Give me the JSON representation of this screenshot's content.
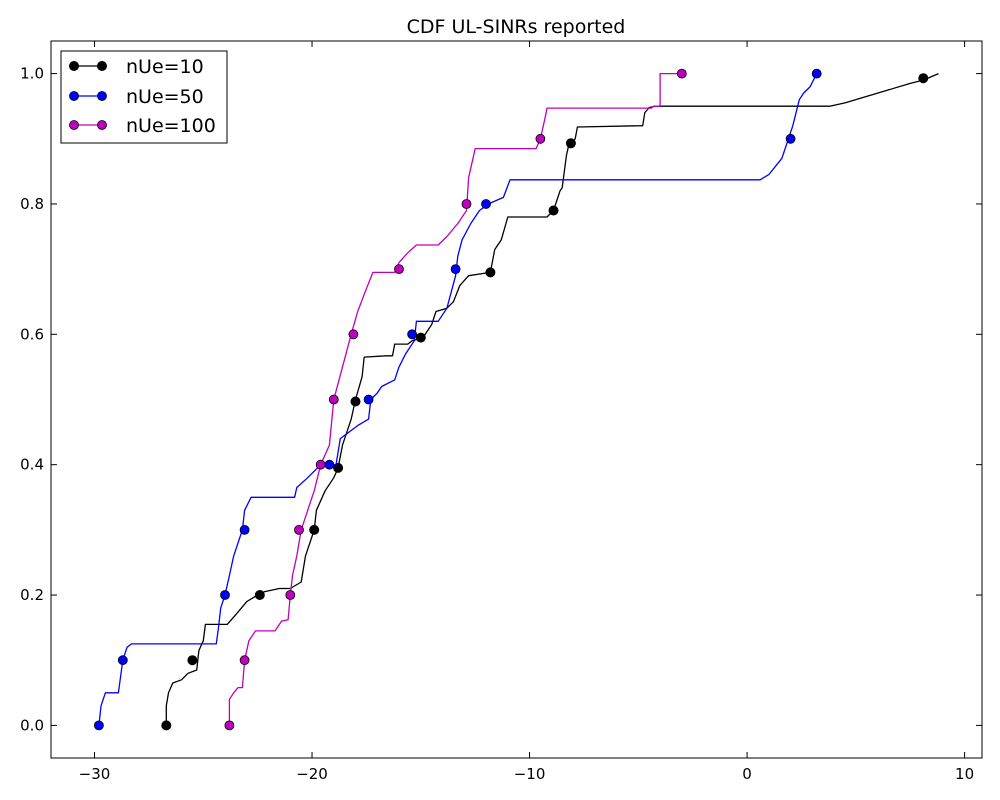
{
  "chart_data": {
    "type": "line",
    "title": "CDF UL-SINRs reported",
    "xlabel": "",
    "ylabel": "",
    "xlim": [
      -32,
      10.8
    ],
    "ylim": [
      -0.05,
      1.05
    ],
    "x_ticks": [
      -30,
      -20,
      -10,
      0,
      10
    ],
    "x_tick_labels": [
      "−30",
      "−20",
      "−10",
      "0",
      "10"
    ],
    "y_ticks": [
      0.0,
      0.2,
      0.4,
      0.6,
      0.8,
      1.0
    ],
    "y_tick_labels": [
      "0.0",
      "0.2",
      "0.4",
      "0.6",
      "0.8",
      "1.0"
    ],
    "legend_position": "top-left",
    "series": [
      {
        "name": "nUe=10",
        "color": "#000000",
        "line": [
          [
            -26.7,
            0.0
          ],
          [
            -26.7,
            0.03
          ],
          [
            -26.6,
            0.05
          ],
          [
            -26.4,
            0.065
          ],
          [
            -26.0,
            0.07
          ],
          [
            -25.7,
            0.08
          ],
          [
            -25.3,
            0.085
          ],
          [
            -25.2,
            0.115
          ],
          [
            -25.0,
            0.13
          ],
          [
            -24.9,
            0.155
          ],
          [
            -23.9,
            0.155
          ],
          [
            -23.5,
            0.17
          ],
          [
            -23.0,
            0.19
          ],
          [
            -22.5,
            0.2
          ],
          [
            -22.2,
            0.205
          ],
          [
            -21.5,
            0.21
          ],
          [
            -21.0,
            0.21
          ],
          [
            -20.5,
            0.22
          ],
          [
            -20.3,
            0.26
          ],
          [
            -19.9,
            0.3
          ],
          [
            -19.8,
            0.33
          ],
          [
            -19.4,
            0.36
          ],
          [
            -19.0,
            0.38
          ],
          [
            -18.8,
            0.395
          ],
          [
            -18.6,
            0.43
          ],
          [
            -18.2,
            0.47
          ],
          [
            -18.0,
            0.5
          ],
          [
            -17.7,
            0.535
          ],
          [
            -17.6,
            0.565
          ],
          [
            -16.6,
            0.567
          ],
          [
            -16.3,
            0.567
          ],
          [
            -16.2,
            0.585
          ],
          [
            -15.6,
            0.585
          ],
          [
            -15.4,
            0.59
          ],
          [
            -14.9,
            0.595
          ],
          [
            -14.5,
            0.615
          ],
          [
            -14.3,
            0.635
          ],
          [
            -13.8,
            0.64
          ],
          [
            -13.5,
            0.65
          ],
          [
            -13.2,
            0.675
          ],
          [
            -12.8,
            0.69
          ],
          [
            -11.8,
            0.695
          ],
          [
            -11.6,
            0.73
          ],
          [
            -11.3,
            0.745
          ],
          [
            -11.0,
            0.78
          ],
          [
            -9.2,
            0.78
          ],
          [
            -8.9,
            0.79
          ],
          [
            -8.6,
            0.82
          ],
          [
            -8.5,
            0.825
          ],
          [
            -8.3,
            0.875
          ],
          [
            -8.2,
            0.89
          ],
          [
            -7.9,
            0.9
          ],
          [
            -7.8,
            0.918
          ],
          [
            -4.8,
            0.92
          ],
          [
            -4.7,
            0.94
          ],
          [
            -4.5,
            0.948
          ],
          [
            -4.2,
            0.95
          ],
          [
            3.8,
            0.95
          ],
          [
            4.5,
            0.955
          ],
          [
            5.5,
            0.965
          ],
          [
            6.5,
            0.975
          ],
          [
            7.5,
            0.985
          ],
          [
            8.1,
            0.99
          ],
          [
            8.8,
            1.0
          ]
        ],
        "markers": [
          [
            -26.7,
            0.0
          ],
          [
            -25.5,
            0.1
          ],
          [
            -22.4,
            0.2
          ],
          [
            -19.9,
            0.3
          ],
          [
            -18.8,
            0.395
          ],
          [
            -18.0,
            0.497
          ],
          [
            -15.0,
            0.595
          ],
          [
            -11.8,
            0.695
          ],
          [
            -8.9,
            0.79
          ],
          [
            -8.1,
            0.893
          ],
          [
            8.1,
            0.993
          ]
        ]
      },
      {
        "name": "nUe=50",
        "color": "#0000ff",
        "line": [
          [
            -29.8,
            0.0
          ],
          [
            -29.7,
            0.03
          ],
          [
            -29.5,
            0.05
          ],
          [
            -28.9,
            0.05
          ],
          [
            -28.7,
            0.1
          ],
          [
            -28.5,
            0.12
          ],
          [
            -28.3,
            0.125
          ],
          [
            -24.4,
            0.125
          ],
          [
            -24.3,
            0.15
          ],
          [
            -24.2,
            0.18
          ],
          [
            -24.0,
            0.2
          ],
          [
            -23.8,
            0.23
          ],
          [
            -23.6,
            0.26
          ],
          [
            -23.3,
            0.29
          ],
          [
            -23.2,
            0.3
          ],
          [
            -23.1,
            0.33
          ],
          [
            -22.8,
            0.35
          ],
          [
            -21.8,
            0.35
          ],
          [
            -20.8,
            0.35
          ],
          [
            -20.7,
            0.365
          ],
          [
            -20.2,
            0.38
          ],
          [
            -19.6,
            0.4
          ],
          [
            -18.9,
            0.4
          ],
          [
            -18.7,
            0.44
          ],
          [
            -18.3,
            0.45
          ],
          [
            -17.9,
            0.46
          ],
          [
            -17.4,
            0.47
          ],
          [
            -17.3,
            0.5
          ],
          [
            -17.0,
            0.51
          ],
          [
            -16.8,
            0.52
          ],
          [
            -16.2,
            0.53
          ],
          [
            -16.0,
            0.55
          ],
          [
            -15.7,
            0.57
          ],
          [
            -15.3,
            0.59
          ],
          [
            -15.2,
            0.62
          ],
          [
            -14.2,
            0.62
          ],
          [
            -13.8,
            0.64
          ],
          [
            -13.4,
            0.69
          ],
          [
            -13.3,
            0.72
          ],
          [
            -13.1,
            0.745
          ],
          [
            -12.7,
            0.77
          ],
          [
            -12.3,
            0.79
          ],
          [
            -11.9,
            0.8
          ],
          [
            -11.2,
            0.81
          ],
          [
            -10.9,
            0.837
          ],
          [
            0.6,
            0.837
          ],
          [
            1.0,
            0.845
          ],
          [
            1.6,
            0.87
          ],
          [
            1.9,
            0.9
          ],
          [
            2.1,
            0.92
          ],
          [
            2.4,
            0.96
          ],
          [
            2.6,
            0.97
          ],
          [
            2.9,
            0.98
          ],
          [
            3.2,
            1.0
          ]
        ],
        "markers": [
          [
            -29.8,
            0.0
          ],
          [
            -28.7,
            0.1
          ],
          [
            -24.0,
            0.2
          ],
          [
            -23.1,
            0.3
          ],
          [
            -19.2,
            0.4
          ],
          [
            -17.4,
            0.5
          ],
          [
            -15.4,
            0.6
          ],
          [
            -13.4,
            0.7
          ],
          [
            -12.0,
            0.8
          ],
          [
            2.0,
            0.9
          ],
          [
            3.2,
            1.0
          ]
        ]
      },
      {
        "name": "nUe=100",
        "color": "#bf00bf",
        "line": [
          [
            -23.8,
            0.0
          ],
          [
            -23.8,
            0.04
          ],
          [
            -23.6,
            0.05
          ],
          [
            -23.4,
            0.058
          ],
          [
            -23.2,
            0.058
          ],
          [
            -23.1,
            0.1
          ],
          [
            -22.9,
            0.13
          ],
          [
            -22.6,
            0.145
          ],
          [
            -21.7,
            0.145
          ],
          [
            -21.4,
            0.16
          ],
          [
            -21.1,
            0.162
          ],
          [
            -21.0,
            0.2
          ],
          [
            -20.9,
            0.23
          ],
          [
            -20.7,
            0.26
          ],
          [
            -20.5,
            0.3
          ],
          [
            -20.2,
            0.33
          ],
          [
            -19.9,
            0.36
          ],
          [
            -19.6,
            0.4
          ],
          [
            -19.2,
            0.43
          ],
          [
            -19.0,
            0.5
          ],
          [
            -18.6,
            0.55
          ],
          [
            -18.2,
            0.6
          ],
          [
            -17.9,
            0.635
          ],
          [
            -17.5,
            0.67
          ],
          [
            -17.2,
            0.695
          ],
          [
            -16.2,
            0.695
          ],
          [
            -16.0,
            0.71
          ],
          [
            -15.6,
            0.725
          ],
          [
            -15.2,
            0.737
          ],
          [
            -14.2,
            0.737
          ],
          [
            -13.8,
            0.75
          ],
          [
            -13.3,
            0.77
          ],
          [
            -12.9,
            0.79
          ],
          [
            -12.8,
            0.84
          ],
          [
            -12.6,
            0.87
          ],
          [
            -12.5,
            0.885
          ],
          [
            -9.7,
            0.885
          ],
          [
            -9.5,
            0.9
          ],
          [
            -9.3,
            0.93
          ],
          [
            -9.2,
            0.947
          ],
          [
            -4.4,
            0.947
          ],
          [
            -4.3,
            0.95
          ],
          [
            -4.0,
            0.95
          ],
          [
            -4.0,
            1.0
          ],
          [
            -3.0,
            1.0
          ]
        ],
        "markers": [
          [
            -23.8,
            0.0
          ],
          [
            -23.1,
            0.1
          ],
          [
            -21.0,
            0.2
          ],
          [
            -20.6,
            0.3
          ],
          [
            -19.6,
            0.4
          ],
          [
            -19.0,
            0.5
          ],
          [
            -18.1,
            0.6
          ],
          [
            -16.0,
            0.7
          ],
          [
            -12.9,
            0.8
          ],
          [
            -9.5,
            0.9
          ],
          [
            -3.0,
            1.0
          ]
        ]
      }
    ]
  }
}
